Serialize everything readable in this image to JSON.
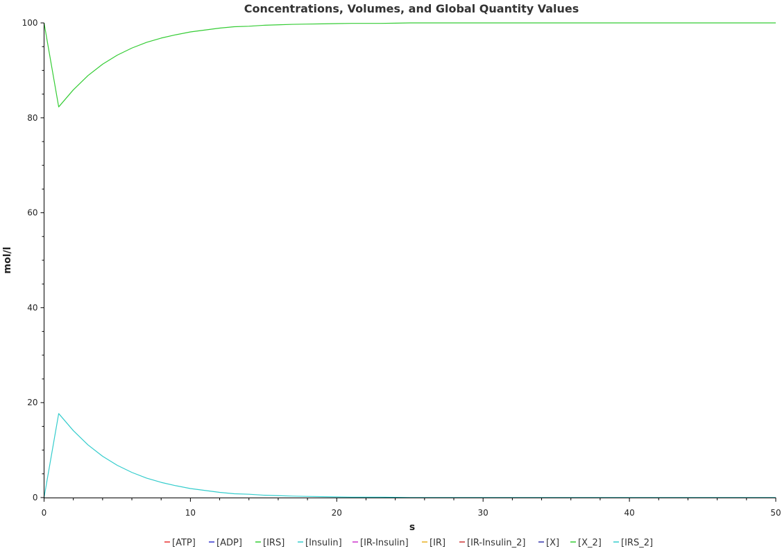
{
  "chart_data": {
    "type": "line",
    "title": "Concentrations, Volumes, and Global Quantity Values",
    "xlabel": "s",
    "ylabel": "mol/l",
    "xlim": [
      0,
      50
    ],
    "ylim": [
      0,
      100
    ],
    "xticks": [
      0,
      10,
      20,
      30,
      40,
      50
    ],
    "yticks": [
      0,
      20,
      40,
      60,
      80,
      100
    ],
    "grid": false,
    "legend_position": "bottom",
    "series": [
      {
        "name": "[ATP]",
        "color": "#e8312f",
        "values": []
      },
      {
        "name": "[ADP]",
        "color": "#3333cc",
        "values": []
      },
      {
        "name": "[IRS]",
        "color": "#33cc33",
        "x": [
          0,
          1,
          2,
          3,
          4,
          5,
          6,
          7,
          8,
          9,
          10,
          11,
          12,
          13,
          14,
          15,
          16,
          17,
          18,
          19,
          20,
          21,
          22,
          23,
          24,
          25,
          30,
          40,
          50
        ],
        "values": [
          100,
          82.3,
          85.9,
          88.9,
          91.3,
          93.2,
          94.7,
          95.9,
          96.8,
          97.5,
          98.1,
          98.5,
          98.9,
          99.2,
          99.3,
          99.5,
          99.6,
          99.7,
          99.75,
          99.8,
          99.85,
          99.9,
          99.9,
          99.9,
          99.95,
          100,
          100,
          100,
          100
        ]
      },
      {
        "name": "[Insulin]",
        "color": "#33cccc",
        "x": [
          0,
          1,
          2,
          3,
          4,
          5,
          6,
          7,
          8,
          9,
          10,
          11,
          12,
          13,
          14,
          15,
          16,
          17,
          18,
          19,
          20,
          21,
          22,
          23,
          24,
          25,
          30,
          40,
          50
        ],
        "values": [
          0,
          17.7,
          14.1,
          11.1,
          8.7,
          6.8,
          5.3,
          4.1,
          3.2,
          2.5,
          1.9,
          1.5,
          1.1,
          0.8,
          0.7,
          0.5,
          0.4,
          0.3,
          0.25,
          0.2,
          0.15,
          0.1,
          0.1,
          0.1,
          0.05,
          0,
          0,
          0,
          0
        ]
      },
      {
        "name": "[IR-Insulin]",
        "color": "#cc33cc",
        "values": []
      },
      {
        "name": "[IR]",
        "color": "#e8b020",
        "values": []
      },
      {
        "name": "[IR-Insulin_2]",
        "color": "#cc3333",
        "values": []
      },
      {
        "name": "[X]",
        "color": "#3333aa",
        "values": []
      },
      {
        "name": "[X_2]",
        "color": "#33cc33",
        "values": []
      },
      {
        "name": "[IRS_2]",
        "color": "#33cccc",
        "values": []
      }
    ]
  }
}
